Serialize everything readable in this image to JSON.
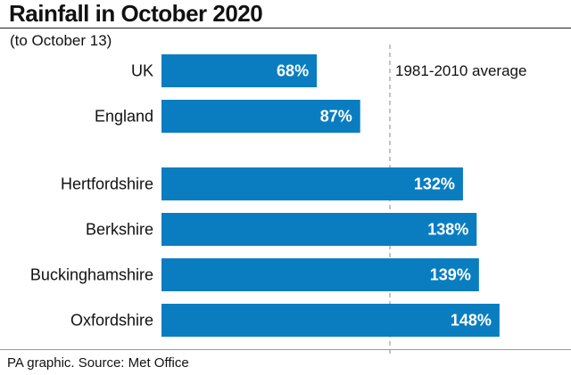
{
  "header": {
    "title": "Rainfall in October 2020",
    "subtitle": "(to October 13)"
  },
  "footer": {
    "source": "PA graphic. Source: Met Office"
  },
  "colors": {
    "bar": "#0a7dc1",
    "reference_line": "#888888"
  },
  "chart_data": {
    "type": "bar",
    "orientation": "horizontal",
    "categories": [
      "UK",
      "England",
      "Hertfordshire",
      "Berkshire",
      "Buckinghamshire",
      "Oxfordshire"
    ],
    "values": [
      68,
      87,
      132,
      138,
      139,
      148
    ],
    "value_labels": [
      "68%",
      "87%",
      "132%",
      "138%",
      "139%",
      "148%"
    ],
    "unit": "%",
    "reference_line": {
      "value": 100,
      "label": "1981-2010 average",
      "style": "dashed"
    },
    "xlim": [
      0,
      148
    ],
    "grid": false,
    "legend": "none"
  }
}
